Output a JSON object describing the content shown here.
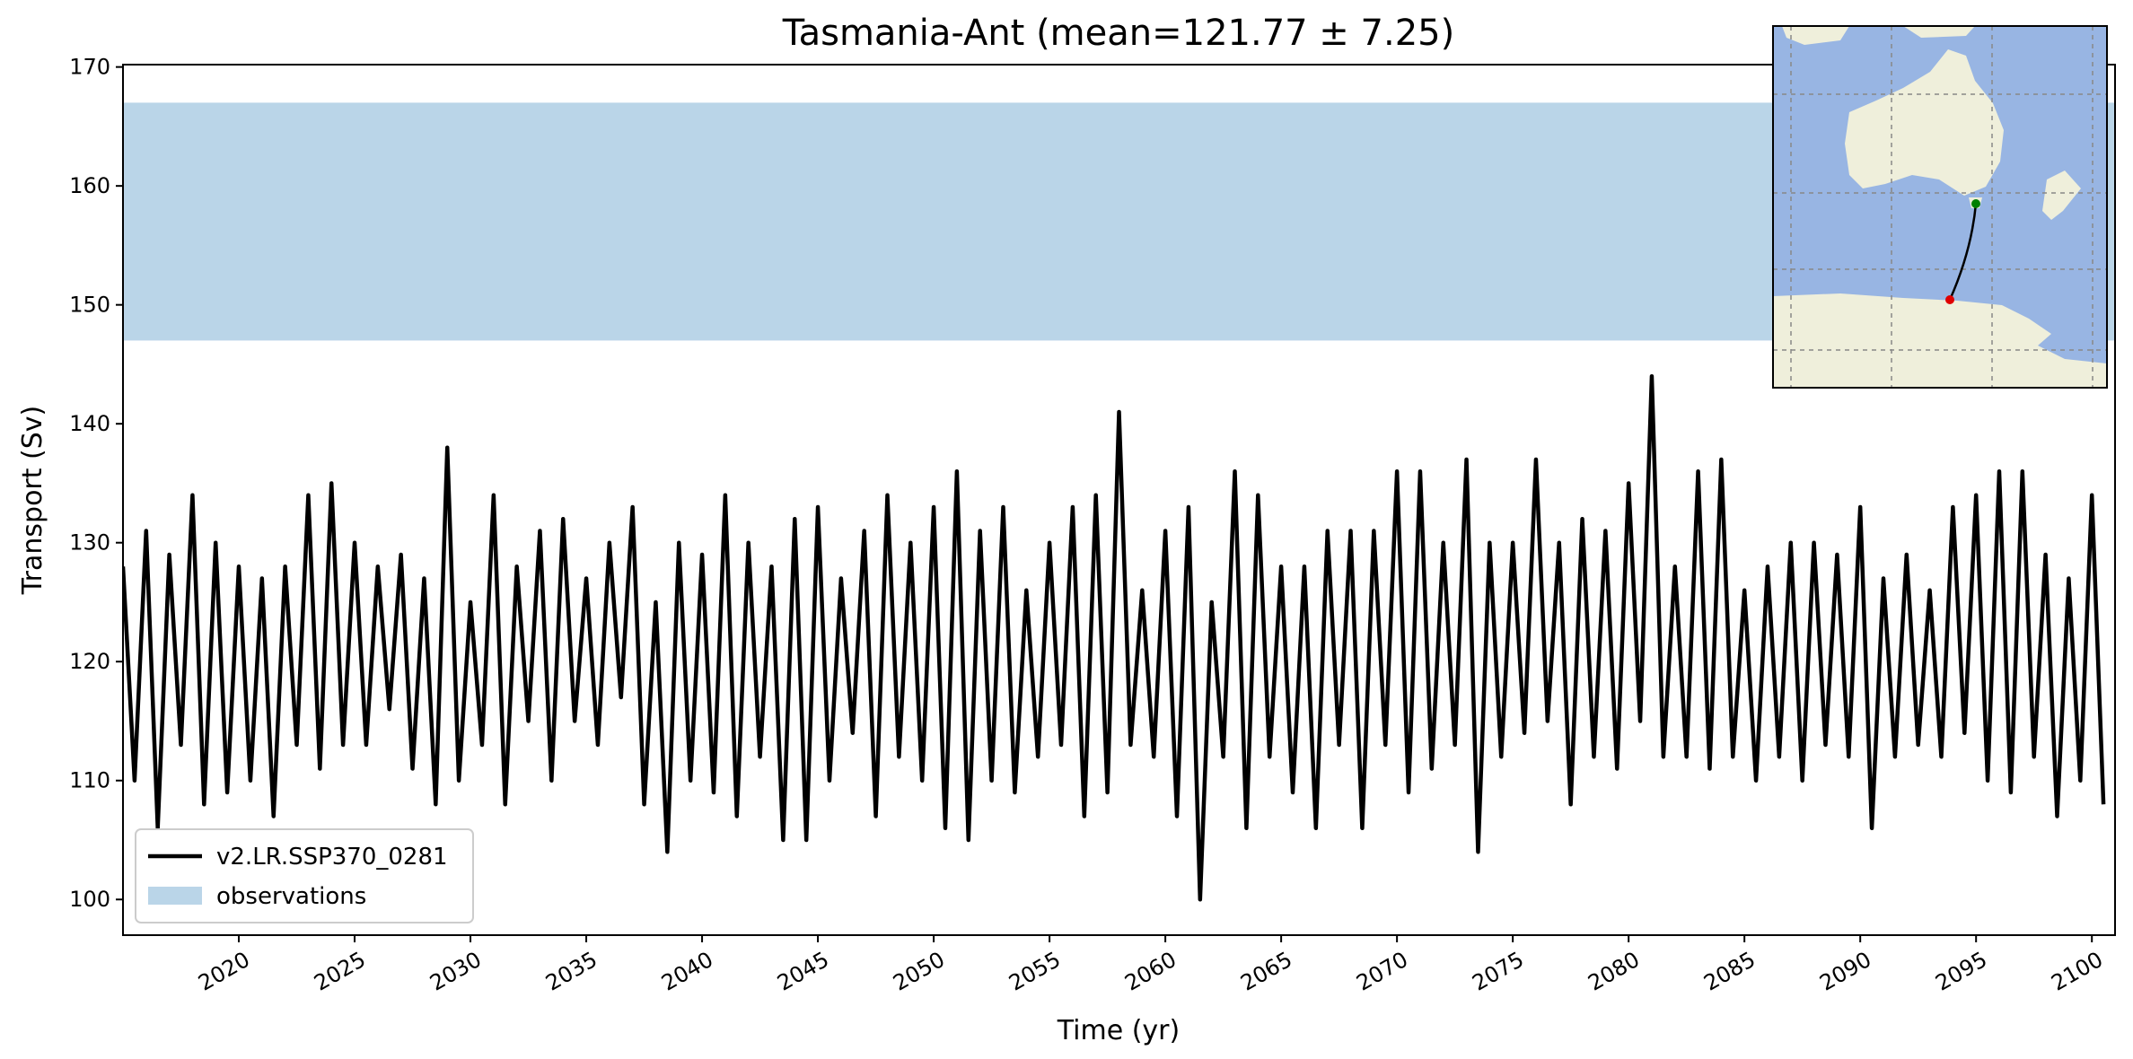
{
  "chart_data": {
    "type": "line",
    "title": "Tasmania-Ant (mean=121.77 ± 7.25)",
    "xlabel": "Time (yr)",
    "ylabel": "Transport (Sv)",
    "xlim": [
      2015,
      2101
    ],
    "ylim": [
      97,
      170.2
    ],
    "xticks": [
      2020,
      2025,
      2030,
      2035,
      2040,
      2045,
      2050,
      2055,
      2060,
      2065,
      2070,
      2075,
      2080,
      2085,
      2090,
      2095,
      2100
    ],
    "yticks": [
      100,
      110,
      120,
      130,
      140,
      150,
      160,
      170
    ],
    "legend": "lower left",
    "bands": [
      {
        "name": "observations",
        "ymin": 147,
        "ymax": 167,
        "color": "#bad5e8"
      }
    ],
    "x": [
      2015,
      2015.5,
      2016,
      2016.5,
      2017,
      2017.5,
      2018,
      2018.5,
      2019,
      2019.5,
      2020,
      2020.5,
      2021,
      2021.5,
      2022,
      2022.5,
      2023,
      2023.5,
      2024,
      2024.5,
      2025,
      2025.5,
      2026,
      2026.5,
      2027,
      2027.5,
      2028,
      2028.5,
      2029,
      2029.5,
      2030,
      2030.5,
      2031,
      2031.5,
      2032,
      2032.5,
      2033,
      2033.5,
      2034,
      2034.5,
      2035,
      2035.5,
      2036,
      2036.5,
      2037,
      2037.5,
      2038,
      2038.5,
      2039,
      2039.5,
      2040,
      2040.5,
      2041,
      2041.5,
      2042,
      2042.5,
      2043,
      2043.5,
      2044,
      2044.5,
      2045,
      2045.5,
      2046,
      2046.5,
      2047,
      2047.5,
      2048,
      2048.5,
      2049,
      2049.5,
      2050,
      2050.5,
      2051,
      2051.5,
      2052,
      2052.5,
      2053,
      2053.5,
      2054,
      2054.5,
      2055,
      2055.5,
      2056,
      2056.5,
      2057,
      2057.5,
      2058,
      2058.5,
      2059,
      2059.5,
      2060,
      2060.5,
      2061,
      2061.5,
      2062,
      2062.5,
      2063,
      2063.5,
      2064,
      2064.5,
      2065,
      2065.5,
      2066,
      2066.5,
      2067,
      2067.5,
      2068,
      2068.5,
      2069,
      2069.5,
      2070,
      2070.5,
      2071,
      2071.5,
      2072,
      2072.5,
      2073,
      2073.5,
      2074,
      2074.5,
      2075,
      2075.5,
      2076,
      2076.5,
      2077,
      2077.5,
      2078,
      2078.5,
      2079,
      2079.5,
      2080,
      2080.5,
      2081,
      2081.5,
      2082,
      2082.5,
      2083,
      2083.5,
      2084,
      2084.5,
      2085,
      2085.5,
      2086,
      2086.5,
      2087,
      2087.5,
      2088,
      2088.5,
      2089,
      2089.5,
      2090,
      2090.5,
      2091,
      2091.5,
      2092,
      2092.5,
      2093,
      2093.5,
      2094,
      2094.5,
      2095,
      2095.5,
      2096,
      2096.5,
      2097,
      2097.5,
      2098,
      2098.5,
      2099,
      2099.5,
      2100,
      2100.5
    ],
    "series": [
      {
        "name": "v2.LR.SSP370_0281",
        "color": "#000000",
        "values": [
          128,
          110,
          131,
          106,
          129,
          113,
          134,
          108,
          130,
          109,
          128,
          110,
          127,
          107,
          128,
          113,
          134,
          111,
          135,
          113,
          130,
          113,
          128,
          116,
          129,
          111,
          127,
          108,
          138,
          110,
          125,
          113,
          134,
          108,
          128,
          115,
          131,
          110,
          132,
          115,
          127,
          113,
          130,
          117,
          133,
          108,
          125,
          104,
          130,
          110,
          129,
          109,
          134,
          107,
          130,
          112,
          128,
          105,
          132,
          105,
          133,
          110,
          127,
          114,
          131,
          107,
          134,
          112,
          130,
          110,
          133,
          106,
          136,
          105,
          131,
          110,
          133,
          109,
          126,
          112,
          130,
          113,
          133,
          107,
          134,
          109,
          141,
          113,
          126,
          112,
          131,
          107,
          133,
          100,
          125,
          112,
          136,
          106,
          134,
          112,
          128,
          109,
          128,
          106,
          131,
          113,
          131,
          106,
          131,
          113,
          136,
          109,
          136,
          111,
          130,
          113,
          137,
          104,
          130,
          112,
          130,
          114,
          137,
          115,
          130,
          108,
          132,
          112,
          131,
          111,
          135,
          115,
          144,
          112,
          128,
          112,
          136,
          111,
          137,
          112,
          126,
          110,
          128,
          112,
          130,
          110,
          130,
          113,
          129,
          112,
          133,
          106,
          127,
          112,
          129,
          113,
          126,
          112,
          133,
          114,
          134,
          110,
          136,
          109,
          136,
          112,
          129,
          107,
          127,
          110,
          134,
          108
        ]
      }
    ]
  }
}
